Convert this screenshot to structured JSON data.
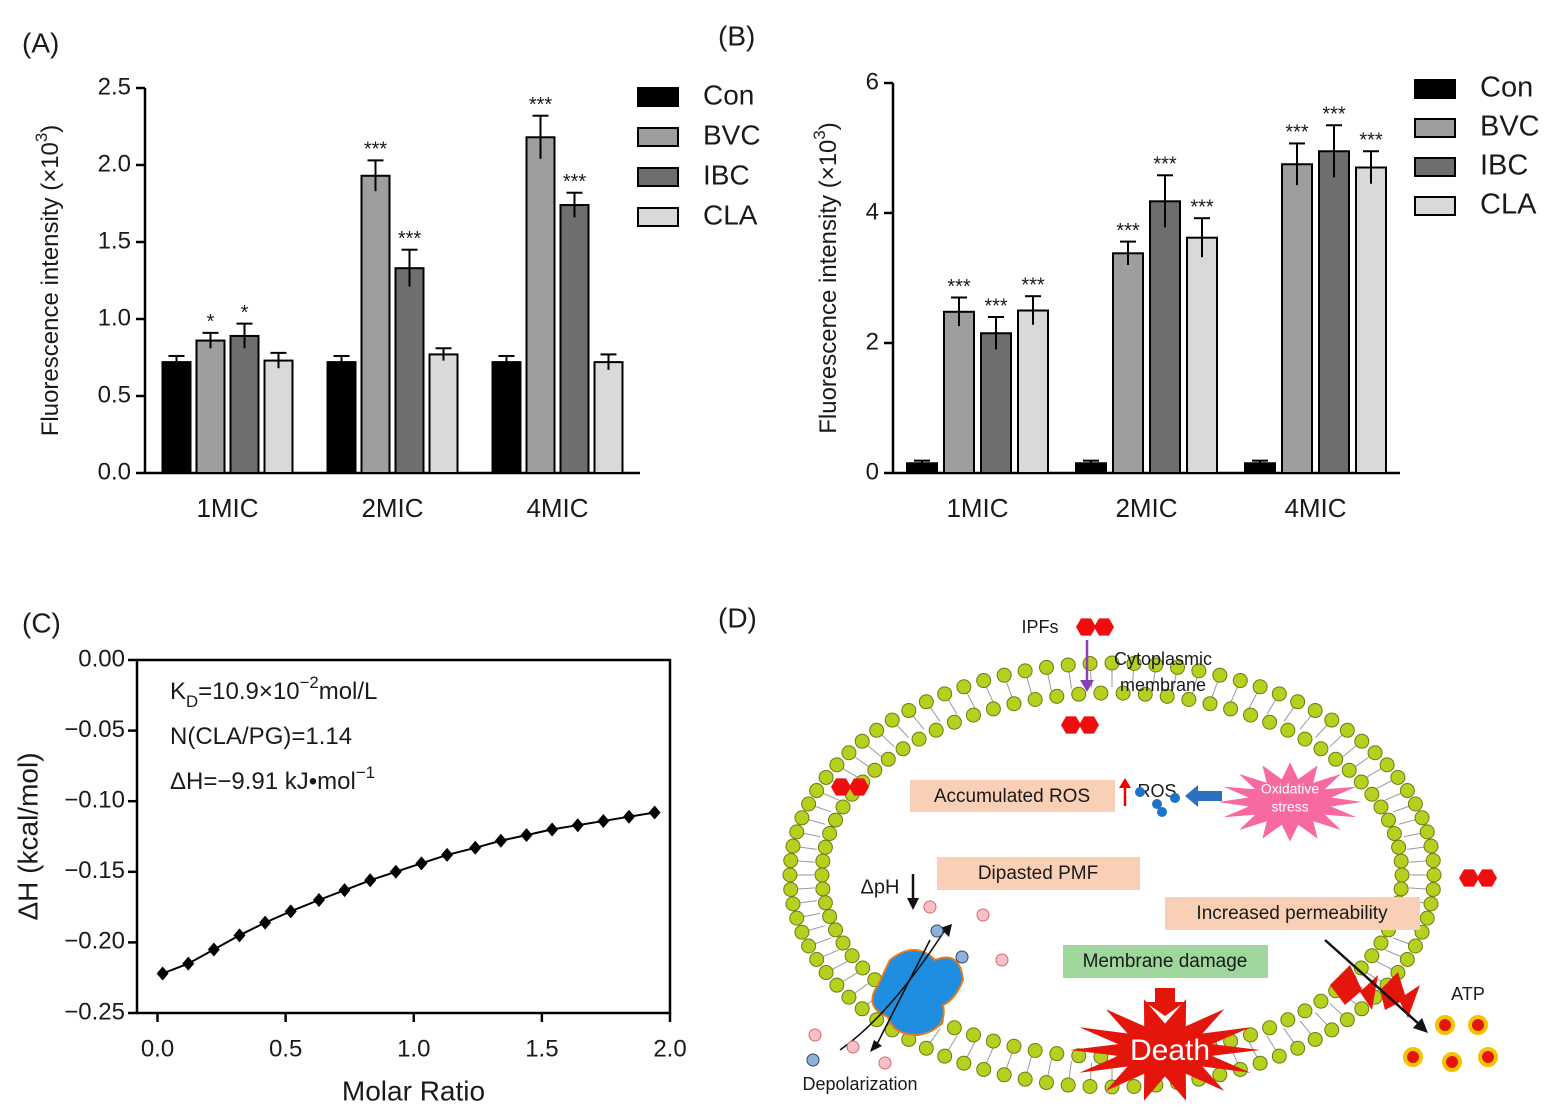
{
  "chart_data": [
    {
      "type": "bar",
      "panel_label": "(A)",
      "y_label": [
        {
          "text": "Fluorescence intensity (×10"
        },
        {
          "text": "3",
          "shift": "super"
        },
        {
          "text": ")"
        }
      ],
      "categories": [
        "1MIC",
        "2MIC",
        "4MIC"
      ],
      "series": [
        {
          "name": "Con",
          "color": "#000000",
          "values": [
            0.72,
            0.72,
            0.72
          ],
          "errors": [
            0.04,
            0.04,
            0.04
          ],
          "annotations": [
            null,
            null,
            null
          ]
        },
        {
          "name": "BVC",
          "color": "#9e9e9e",
          "values": [
            0.86,
            1.93,
            2.18
          ],
          "errors": [
            0.05,
            0.1,
            0.14
          ],
          "annotations": [
            "*",
            "***",
            "***"
          ]
        },
        {
          "name": "IBC",
          "color": "#6e6e6e",
          "values": [
            0.89,
            1.33,
            1.74
          ],
          "errors": [
            0.08,
            0.12,
            0.08
          ],
          "annotations": [
            "*",
            "***",
            "***"
          ]
        },
        {
          "name": "CLA",
          "color": "#d9d9d9",
          "values": [
            0.73,
            0.77,
            0.72
          ],
          "errors": [
            0.05,
            0.04,
            0.05
          ],
          "annotations": [
            null,
            null,
            null
          ]
        }
      ],
      "ylim": [
        0,
        2.5
      ],
      "yticks": [
        {
          "value": 0,
          "label": "0.0"
        },
        0.5,
        {
          "value": 1,
          "label": "1.0"
        },
        1.5,
        {
          "value": 2,
          "label": "2.0"
        },
        2.5
      ],
      "legend": "right"
    },
    {
      "type": "bar",
      "panel_label": "(B)",
      "y_label": [
        {
          "text": "Fluorescence intensity (×10"
        },
        {
          "text": "3",
          "shift": "super"
        },
        {
          "text": ")"
        }
      ],
      "categories": [
        "1MIC",
        "2MIC",
        "4MIC"
      ],
      "series": [
        {
          "name": "Con",
          "color": "#000000",
          "values": [
            0.15,
            0.15,
            0.15
          ],
          "errors": [
            0.04,
            0.04,
            0.04
          ],
          "annotations": [
            null,
            null,
            null
          ]
        },
        {
          "name": "BVC",
          "color": "#9e9e9e",
          "values": [
            2.48,
            3.38,
            4.75
          ],
          "errors": [
            0.22,
            0.18,
            0.32
          ],
          "annotations": [
            "***",
            "***",
            "***"
          ]
        },
        {
          "name": "IBC",
          "color": "#6e6e6e",
          "values": [
            2.15,
            4.18,
            4.95
          ],
          "errors": [
            0.25,
            0.4,
            0.4
          ],
          "annotations": [
            "***",
            "***",
            "***"
          ]
        },
        {
          "name": "CLA",
          "color": "#d9d9d9",
          "values": [
            2.5,
            3.62,
            4.7
          ],
          "errors": [
            0.22,
            0.3,
            0.25
          ],
          "annotations": [
            "***",
            "***",
            "***"
          ]
        }
      ],
      "ylim": [
        0,
        6
      ],
      "yticks": [
        0,
        2,
        4,
        6
      ],
      "legend": "right"
    },
    {
      "type": "line",
      "panel_label": "(C)",
      "x_label": "Molar Ratio",
      "y_label": "ΔH (kcal/mol)",
      "x": [
        0.02,
        0.12,
        0.22,
        0.32,
        0.42,
        0.52,
        0.63,
        0.73,
        0.83,
        0.93,
        1.03,
        1.13,
        1.24,
        1.34,
        1.44,
        1.54,
        1.64,
        1.74,
        1.84,
        1.94
      ],
      "series": [
        {
          "color": "#000000",
          "values": [
            -0.222,
            -0.215,
            -0.205,
            -0.195,
            -0.186,
            -0.178,
            -0.17,
            -0.163,
            -0.156,
            -0.15,
            -0.144,
            -0.138,
            -0.133,
            -0.128,
            -0.124,
            -0.12,
            -0.117,
            -0.114,
            -0.111,
            -0.108
          ]
        }
      ],
      "xlim": [
        -0.08,
        2.0
      ],
      "xticks": [
        {
          "value": 0,
          "label": "0.0"
        },
        0.5,
        {
          "value": 1,
          "label": "1.0"
        },
        1.5,
        {
          "value": 2,
          "label": "2.0"
        }
      ],
      "ylim": [
        -0.25,
        0
      ],
      "yticks": [
        {
          "value": -0.25,
          "label": "−0.25"
        },
        {
          "value": -0.2,
          "label": "−0.20"
        },
        {
          "value": -0.15,
          "label": "−0.15"
        },
        {
          "value": -0.1,
          "label": "−0.10"
        },
        {
          "value": -0.05,
          "label": "−0.05"
        },
        {
          "value": 0,
          "label": "0.00"
        }
      ],
      "annotations": [
        [
          {
            "text": "K"
          },
          {
            "text": "D",
            "shift": "sub"
          },
          {
            "text": "=10.9×10"
          },
          {
            "text": "−2",
            "shift": "super"
          },
          {
            "text": "mol/L"
          }
        ],
        [
          {
            "text": "N(CLA/PG)=1.14"
          }
        ],
        [
          {
            "text": "ΔH=−9.91 kJ•mol"
          },
          {
            "text": "−1",
            "shift": "super"
          }
        ]
      ]
    }
  ],
  "diagram": {
    "panel_label": "(D)",
    "labels": {
      "ipfs": "IPFs",
      "membrane": [
        "Cytoplasmic",
        "membrane"
      ],
      "ros": "ROS",
      "accumulated": "Accumulated ROS",
      "oxidative": [
        "Oxidative",
        "stress"
      ],
      "pmf": "Dipasted PMF",
      "dph": "ΔpH",
      "permeability": "Increased permeability",
      "damage": "Membrane damage",
      "death": "Death",
      "atp": "ATP",
      "depolarization": "Depolarization"
    }
  }
}
